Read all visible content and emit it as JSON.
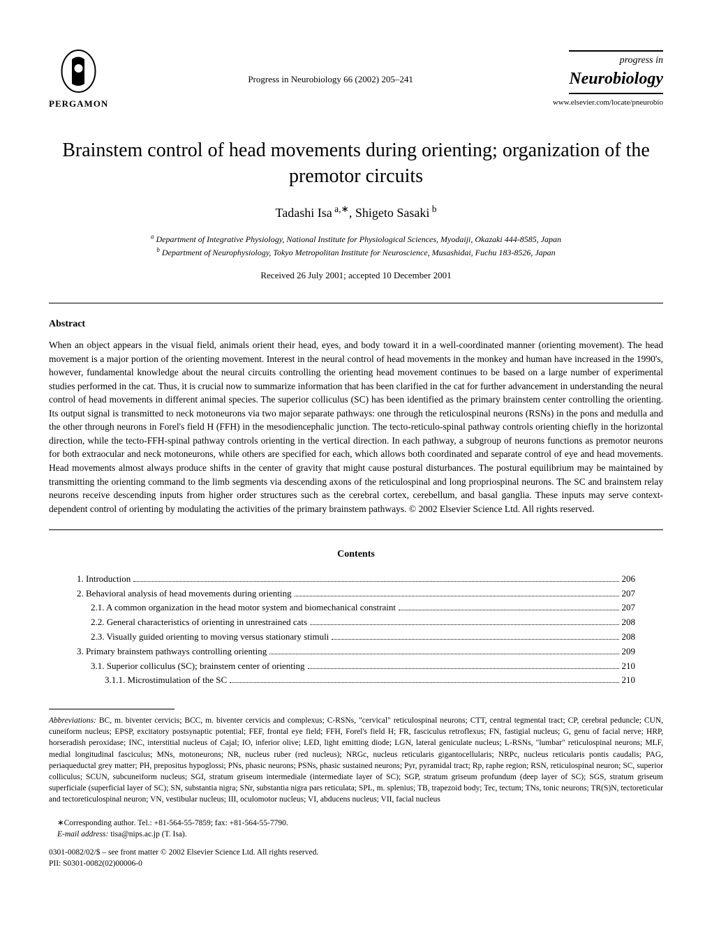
{
  "header": {
    "pergamon": "PERGAMON",
    "citation": "Progress in Neurobiology 66 (2002) 205–241",
    "progress_in": "progress in",
    "journal": "Neurobiology",
    "url": "www.elsevier.com/locate/pneurobio"
  },
  "title": "Brainstem control of head movements during orienting; organization of the premotor circuits",
  "authors": "Tadashi Isa a,∗, Shigeto Sasaki b",
  "affiliations": {
    "a": "a Department of Integrative Physiology, National Institute for Physiological Sciences, Myodaiji, Okazaki 444-8585, Japan",
    "b": "b Department of Neurophysiology, Tokyo Metropolitan Institute for Neuroscience, Musashidai, Fuchu 183-8526, Japan"
  },
  "received": "Received 26 July 2001; accepted 10 December 2001",
  "abstract_heading": "Abstract",
  "abstract": "When an object appears in the visual field, animals orient their head, eyes, and body toward it in a well-coordinated manner (orienting movement). The head movement is a major portion of the orienting movement. Interest in the neural control of head movements in the monkey and human have increased in the 1990's, however, fundamental knowledge about the neural circuits controlling the orienting head movement continues to be based on a large number of experimental studies performed in the cat. Thus, it is crucial now to summarize information that has been clarified in the cat for further advancement in understanding the neural control of head movements in different animal species. The superior colliculus (SC) has been identified as the primary brainstem center controlling the orienting. Its output signal is transmitted to neck motoneurons via two major separate pathways: one through the reticulospinal neurons (RSNs) in the pons and medulla and the other through neurons in Forel's field H (FFH) in the mesodiencephalic junction. The tecto-reticulo-spinal pathway controls orienting chiefly in the horizontal direction, while the tecto-FFH-spinal pathway controls orienting in the vertical direction. In each pathway, a subgroup of neurons functions as premotor neurons for both extraocular and neck motoneurons, while others are specified for each, which allows both coordinated and separate control of eye and head movements. Head movements almost always produce shifts in the center of gravity that might cause postural disturbances. The postural equilibrium may be maintained by transmitting the orienting command to the limb segments via descending axons of the reticulospinal and long propriospinal neurons. The SC and brainstem relay neurons receive descending inputs from higher order structures such as the cerebral cortex, cerebellum, and basal ganglia. These inputs may serve context-dependent control of orienting by modulating the activities of the primary brainstem pathways. © 2002 Elsevier Science Ltd. All rights reserved.",
  "contents_heading": "Contents",
  "contents": [
    {
      "label": "1. Introduction",
      "page": "206",
      "indent": 0
    },
    {
      "label": "2. Behavioral analysis of head movements during orienting",
      "page": "207",
      "indent": 0
    },
    {
      "label": "2.1. A common organization in the head motor system and biomechanical constraint",
      "page": "207",
      "indent": 1
    },
    {
      "label": "2.2. General characteristics of orienting in unrestrained cats",
      "page": "208",
      "indent": 1
    },
    {
      "label": "2.3. Visually guided orienting to moving versus stationary stimuli",
      "page": "208",
      "indent": 1
    },
    {
      "label": "3. Primary brainstem pathways controlling orienting",
      "page": "209",
      "indent": 0
    },
    {
      "label": "3.1. Superior colliculus (SC); brainstem center of orienting",
      "page": "210",
      "indent": 1
    },
    {
      "label": "3.1.1. Microstimulation of the SC",
      "page": "210",
      "indent": 2
    }
  ],
  "abbreviations_label": "Abbreviations:",
  "abbreviations": " BC, m. biventer cervicis; BCC, m. biventer cervicis and complexus; C-RSNs, \"cervical\" reticulospinal neurons; CTT, central tegmental tract; CP, cerebral peduncle; CUN, cuneiform nucleus; EPSP, excitatory postsynaptic potential; FEF, frontal eye field; FFH, Forel's field H; FR, fasciculus retroflexus; FN, fastigial nucleus; G, genu of facial nerve; HRP, horseradish peroxidase; INC, interstitial nucleus of Cajal; IO, inferior olive; LED, light emitting diode; LGN, lateral geniculate nucleus; L-RSNs, \"lumbar\" reticulospinal neurons; MLF, medial longitudinal fasciculus; MNs, motoneurons; NR, nucleus ruber (red nucleus); NRGc, nucleus reticularis gigantocellularis; NRPc, nucleus reticularis pontis caudalis; PAG, periaqueductal grey matter; PH, prepositus hypoglossi; PNs, phasic neurons; PSNs, phasic sustained neurons; Pyr, pyramidal tract; Rp, raphe region; RSN, reticulospinal neuron; SC, superior colliculus; SCUN, subcuneiform nucleus; SGI, stratum griseum intermediale (intermediate layer of SC); SGP, stratum griseum profundum (deep layer of SC); SGS, stratum griseum superficiale (superficial layer of SC); SN, substantia nigra; SNr, substantia nigra pars reticulata; SPL, m. splenius; TB, trapezoid body; Tec, tectum; TNs, tonic neurons; TR(S)N, tectoreticular and tectoreticulospinal neuron; VN, vestibular nucleus; III, oculomotor nucleus; VI, abducens nucleus; VII, facial nucleus",
  "corresponding": "∗Corresponding author. Tel.: +81-564-55-7859; fax: +81-564-55-7790.",
  "email_label": "E-mail address:",
  "email": " tisa@nips.ac.jp (T. Isa).",
  "copyright": "0301-0082/02/$ – see front matter © 2002 Elsevier Science Ltd. All rights reserved.",
  "pii": "PII: S0301-0082(02)00006-0"
}
